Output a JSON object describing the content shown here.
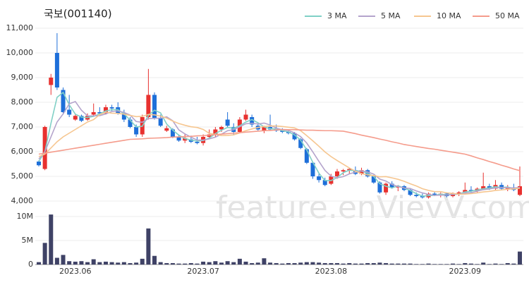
{
  "chart_data": {
    "type": "candlestick",
    "title": "국보(001140)",
    "watermark": "feature.enVievV.com",
    "categories": [
      null,
      null,
      null,
      null,
      null,
      null,
      "2023.06",
      null,
      null,
      null,
      null,
      null,
      null,
      null,
      null,
      null,
      null,
      null,
      null,
      null,
      null,
      null,
      null,
      null,
      null,
      null,
      null,
      "2023.07",
      null,
      null,
      null,
      null,
      null,
      null,
      null,
      null,
      null,
      null,
      null,
      null,
      null,
      null,
      null,
      null,
      null,
      null,
      null,
      null,
      "2023.08",
      null,
      null,
      null,
      null,
      null,
      null,
      null,
      null,
      null,
      null,
      null,
      null,
      null,
      null,
      null,
      null,
      null,
      null,
      null,
      null,
      null,
      "2023.09",
      null,
      null,
      null,
      null,
      null,
      null,
      null,
      null,
      null
    ],
    "open": [
      5600,
      5300,
      8700,
      10000,
      8500,
      7700,
      7300,
      7450,
      7300,
      7500,
      7600,
      7550,
      7800,
      7800,
      7550,
      7300,
      7000,
      6700,
      7400,
      8300,
      7350,
      6850,
      6900,
      6600,
      6450,
      6500,
      6400,
      6350,
      6600,
      6700,
      6900,
      7300,
      7000,
      6800,
      7300,
      7400,
      7050,
      6850,
      7000,
      6900,
      6850,
      6800,
      6750,
      6500,
      6100,
      5550,
      5000,
      4850,
      4700,
      5000,
      5200,
      5250,
      5250,
      5100,
      5250,
      5000,
      4750,
      4350,
      4700,
      4550,
      4600,
      4450,
      4250,
      4200,
      4150,
      4300,
      4250,
      4300,
      4200,
      4300,
      4350,
      4450,
      4400,
      4500,
      4600,
      4500,
      4650,
      4500,
      4550,
      4250
    ],
    "high": [
      5650,
      7050,
      9150,
      10800,
      8600,
      8300,
      7500,
      7500,
      7550,
      7950,
      7800,
      7900,
      7900,
      8000,
      7700,
      7400,
      7100,
      7500,
      9350,
      8400,
      7500,
      7050,
      6950,
      6700,
      6700,
      6650,
      6600,
      6700,
      6900,
      7000,
      7050,
      7600,
      7150,
      7400,
      7700,
      7500,
      7150,
      7050,
      7500,
      7100,
      6950,
      6900,
      6800,
      6550,
      6150,
      5600,
      5100,
      4950,
      5100,
      5300,
      5300,
      5350,
      5400,
      5350,
      5300,
      5050,
      4800,
      4750,
      4800,
      4650,
      4650,
      4500,
      4350,
      4300,
      4350,
      4400,
      4350,
      4350,
      4350,
      4400,
      4750,
      4600,
      4550,
      5150,
      4700,
      4850,
      4750,
      4650,
      4700,
      5400
    ],
    "low": [
      5400,
      5250,
      8300,
      8500,
      7500,
      7400,
      7250,
      7200,
      7250,
      7450,
      7450,
      7500,
      7650,
      7500,
      7200,
      6950,
      6600,
      6600,
      7300,
      7300,
      7000,
      6800,
      6550,
      6400,
      6350,
      6350,
      6300,
      6250,
      6500,
      6600,
      6800,
      7000,
      6700,
      6750,
      7250,
      7000,
      6850,
      6750,
      6850,
      6800,
      6750,
      6700,
      6450,
      6100,
      5500,
      4900,
      4750,
      4600,
      4650,
      4900,
      5050,
      5100,
      5050,
      5050,
      4950,
      4700,
      4300,
      4250,
      4500,
      4400,
      4400,
      4200,
      4150,
      4100,
      4100,
      4200,
      4150,
      4150,
      4150,
      4200,
      4300,
      4350,
      4350,
      4450,
      4450,
      4450,
      4450,
      4400,
      4400,
      4200
    ],
    "close": [
      5450,
      7000,
      9000,
      8600,
      7600,
      7500,
      7450,
      7250,
      7450,
      7600,
      7550,
      7800,
      7750,
      7550,
      7300,
      7000,
      6700,
      7400,
      8300,
      7350,
      7050,
      6950,
      6600,
      6450,
      6550,
      6400,
      6350,
      6600,
      6700,
      6900,
      7000,
      7050,
      6800,
      7300,
      7500,
      7100,
      6900,
      7000,
      6900,
      6850,
      6800,
      6750,
      6500,
      6150,
      5550,
      5000,
      4850,
      4650,
      5000,
      5200,
      5250,
      5300,
      5100,
      5250,
      5000,
      4750,
      4350,
      4700,
      4550,
      4600,
      4450,
      4250,
      4200,
      4150,
      4300,
      4250,
      4300,
      4200,
      4300,
      4350,
      4450,
      4400,
      4500,
      4600,
      4500,
      4650,
      4500,
      4550,
      4450,
      4600
    ],
    "up_color": "#e8312f",
    "down_color": "#1e6fd9",
    "series": [
      {
        "name": "3 MA",
        "color": "#80d0c6",
        "values": [
          5600,
          6000,
          7150,
          8200,
          8400,
          7900,
          7520,
          7400,
          7380,
          7430,
          7530,
          7650,
          7700,
          7700,
          7530,
          7280,
          7000,
          7030,
          7470,
          7680,
          7570,
          7120,
          6870,
          6670,
          6530,
          6470,
          6430,
          6450,
          6550,
          6730,
          6870,
          6980,
          6950,
          7050,
          7200,
          7300,
          7170,
          7000,
          6930,
          6920,
          6850,
          6800,
          6680,
          6470,
          6070,
          5570,
          5130,
          4830,
          4830,
          4950,
          5150,
          5250,
          5220,
          5220,
          5120,
          5000,
          4700,
          4600,
          4530,
          4620,
          4530,
          4430,
          4300,
          4200,
          4220,
          4230,
          4280,
          4250,
          4270,
          4280,
          4370,
          4400,
          4450,
          4500,
          4530,
          4580,
          4550,
          4570,
          4500,
          4530
        ]
      },
      {
        "name": "5 MA",
        "color": "#b4a4cc",
        "values": [
          5700,
          6000,
          6600,
          7200,
          7530,
          7940,
          8030,
          7680,
          7450,
          7450,
          7460,
          7530,
          7630,
          7650,
          7590,
          7480,
          7220,
          7190,
          7340,
          7350,
          7360,
          7410,
          7250,
          6880,
          6720,
          6590,
          6470,
          6470,
          6520,
          6590,
          6710,
          6850,
          6890,
          7010,
          7130,
          7150,
          7120,
          7160,
          7080,
          6950,
          6890,
          6860,
          6760,
          6610,
          6350,
          5990,
          5610,
          5240,
          5010,
          4940,
          4990,
          5100,
          5170,
          5220,
          5180,
          5090,
          4890,
          4810,
          4670,
          4590,
          4530,
          4510,
          4410,
          4330,
          4270,
          4230,
          4240,
          4240,
          4270,
          4280,
          4320,
          4340,
          4400,
          4460,
          4490,
          4530,
          4550,
          4540,
          4530,
          4550
        ]
      },
      {
        "name": "10 MA",
        "color": "#f6c690",
        "values": [
          5800,
          5900,
          6150,
          6400,
          6600,
          6750,
          6900,
          7050,
          7200,
          7300,
          7500,
          7600,
          7560,
          7550,
          7520,
          7470,
          7420,
          7430,
          7510,
          7490,
          7440,
          7360,
          7240,
          7140,
          7070,
          7010,
          6980,
          6900,
          6740,
          6700,
          6650,
          6660,
          6680,
          6760,
          6850,
          6920,
          6980,
          7020,
          7040,
          7040,
          7020,
          6990,
          6960,
          6850,
          6650,
          6440,
          6220,
          5990,
          5800,
          5640,
          5490,
          5340,
          5210,
          5110,
          5060,
          5030,
          4980,
          4990,
          4940,
          4880,
          4800,
          4700,
          4610,
          4500,
          4430,
          4380,
          4380,
          4330,
          4310,
          4280,
          4280,
          4300,
          4330,
          4370,
          4390,
          4430,
          4450,
          4480,
          4490,
          4520
        ]
      },
      {
        "name": "50 MA",
        "color": "#f59c8c",
        "values": [
          5900,
          5940,
          5980,
          6020,
          6060,
          6100,
          6140,
          6180,
          6220,
          6260,
          6300,
          6340,
          6380,
          6420,
          6460,
          6500,
          6510,
          6520,
          6540,
          6550,
          6560,
          6570,
          6590,
          6600,
          6610,
          6620,
          6640,
          6650,
          6670,
          6690,
          6710,
          6730,
          6750,
          6770,
          6790,
          6810,
          6830,
          6850,
          6860,
          6880,
          6900,
          6890,
          6890,
          6880,
          6870,
          6870,
          6860,
          6850,
          6850,
          6840,
          6830,
          6780,
          6730,
          6670,
          6620,
          6570,
          6510,
          6460,
          6400,
          6350,
          6290,
          6250,
          6210,
          6170,
          6130,
          6100,
          6060,
          6020,
          5980,
          5940,
          5900,
          5830,
          5750,
          5680,
          5600,
          5530,
          5450,
          5380,
          5300,
          5230
        ]
      }
    ],
    "ylim": [
      3800,
      11200
    ],
    "yticks": [
      {
        "value": 4000,
        "label": "4,000"
      },
      {
        "value": 5000,
        "label": "5,000"
      },
      {
        "value": 6000,
        "label": "6,000"
      },
      {
        "value": 7000,
        "label": "7,000"
      },
      {
        "value": 8000,
        "label": "8,000"
      },
      {
        "value": 9000,
        "label": "9,000"
      },
      {
        "value": 10000,
        "label": "10,000"
      },
      {
        "value": 11000,
        "label": "11,000"
      }
    ],
    "grid": true,
    "volume": {
      "color": "#3f4266",
      "ylim": [
        0,
        11000000
      ],
      "yticks": [
        0,
        {
          "value": 5000000,
          "label": "5M"
        },
        {
          "value": 10000000,
          "label": "10M"
        }
      ],
      "values": [
        500000,
        4500000,
        10400000,
        1400000,
        2000000,
        700000,
        600000,
        700000,
        500000,
        1100000,
        500000,
        600000,
        500000,
        400000,
        500000,
        300000,
        400000,
        1200000,
        7500000,
        1800000,
        500000,
        300000,
        300000,
        200000,
        200000,
        300000,
        200000,
        600000,
        500000,
        700000,
        400000,
        700000,
        500000,
        1200000,
        600000,
        300000,
        400000,
        1300000,
        400000,
        300000,
        200000,
        300000,
        300000,
        400000,
        500000,
        500000,
        400000,
        300000,
        300000,
        300000,
        200000,
        300000,
        200000,
        200000,
        300000,
        300000,
        400000,
        300000,
        200000,
        200000,
        200000,
        200000,
        100000,
        100000,
        200000,
        100000,
        100000,
        100000,
        200000,
        100000,
        300000,
        200000,
        100000,
        400000,
        100000,
        200000,
        100000,
        300000,
        200000,
        2700000
      ]
    }
  }
}
